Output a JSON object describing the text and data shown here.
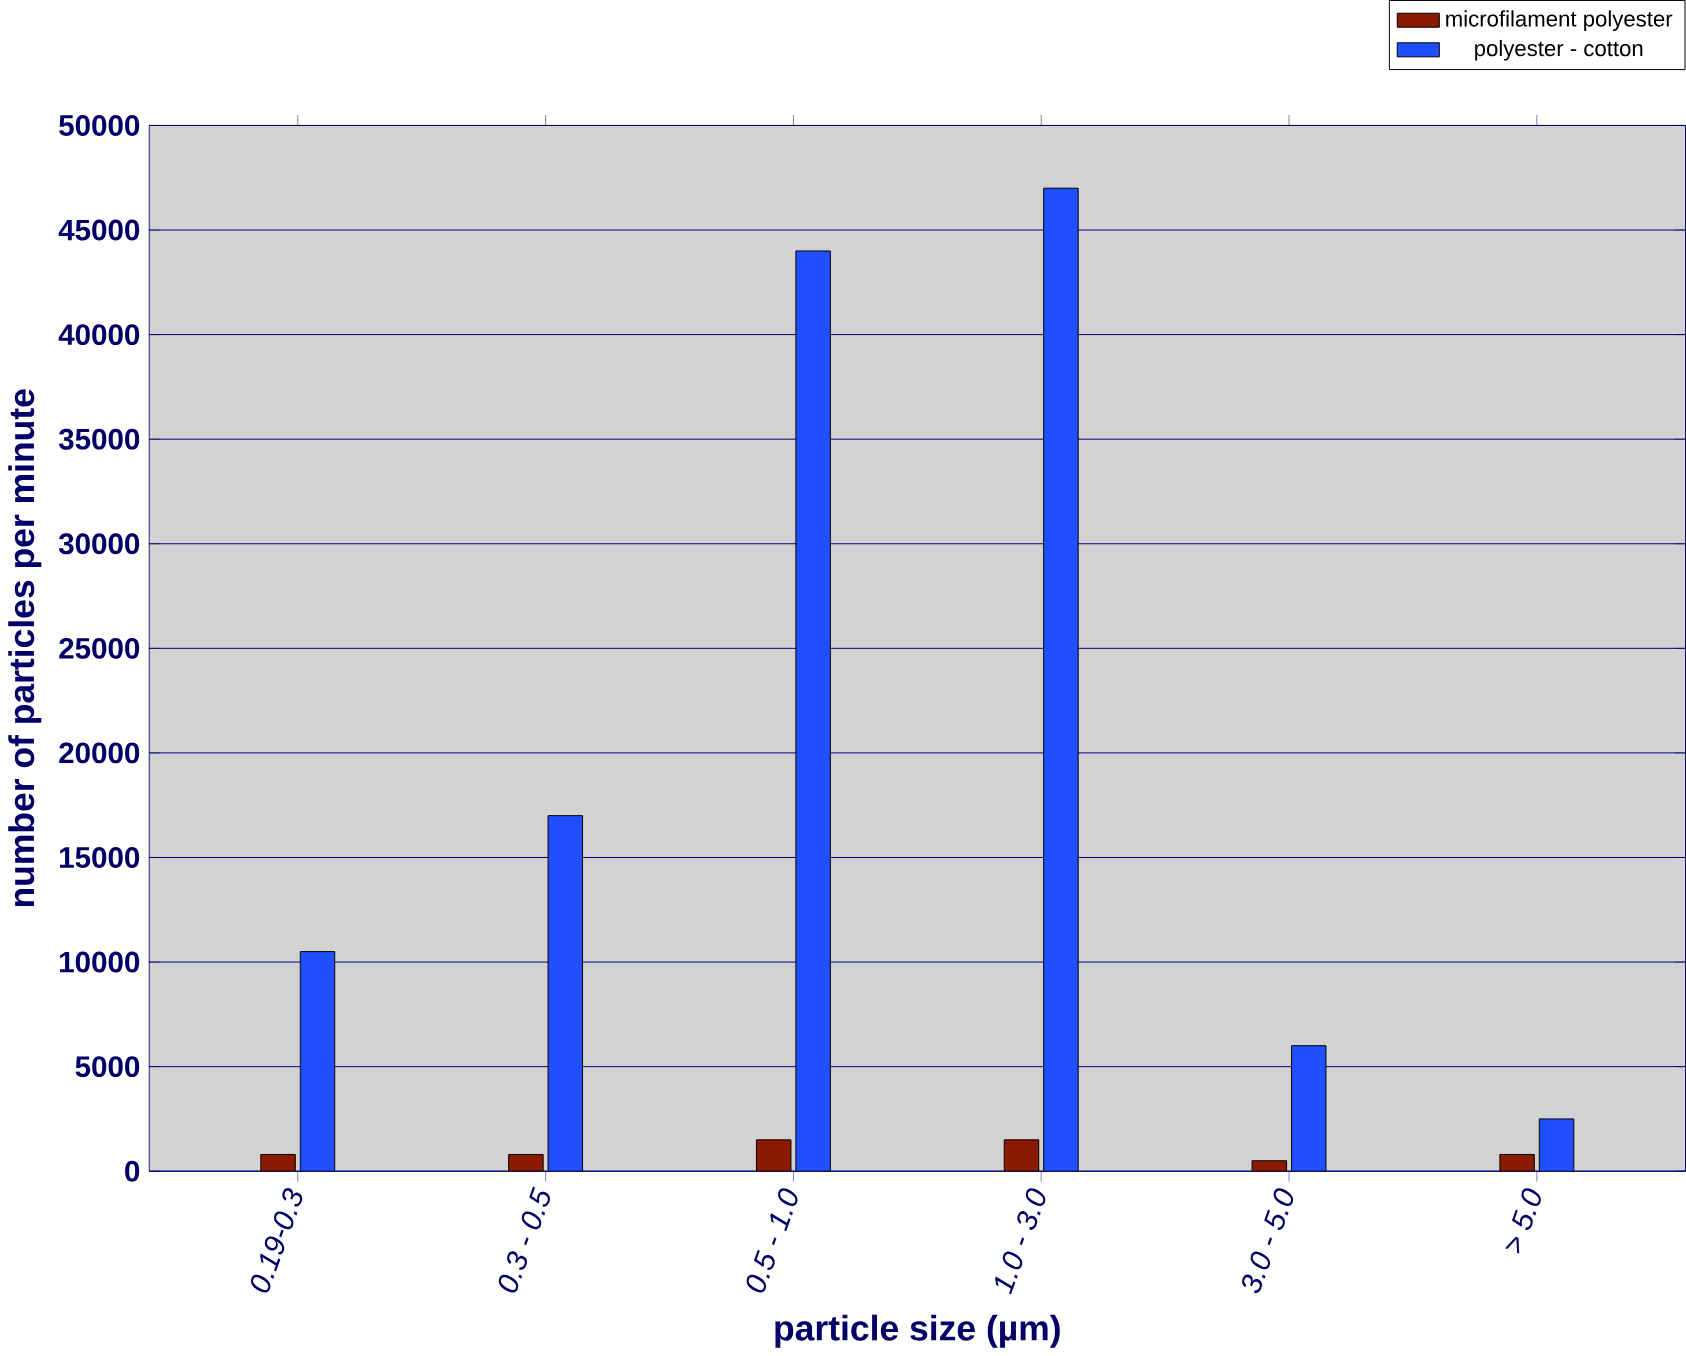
{
  "chart_data": {
    "type": "bar",
    "xlabel": "particle size (µm)",
    "ylabel": "number of particles per minute",
    "categories": [
      "0.19-0.3",
      "0.3 - 0.5",
      "0.5 - 1.0",
      "1.0 - 3.0",
      "3.0 - 5.0",
      "> 5.0"
    ],
    "series": [
      {
        "name": "microfilament polyester",
        "color": "#8b1a00",
        "values": [
          800,
          800,
          1500,
          1500,
          500,
          800
        ]
      },
      {
        "name": "polyester - cotton",
        "color": "#1f4fff",
        "values": [
          10500,
          17000,
          44000,
          47000,
          6000,
          2500
        ]
      }
    ],
    "ylim": [
      0,
      50000
    ],
    "yticks": [
      0,
      5000,
      10000,
      15000,
      20000,
      25000,
      30000,
      35000,
      40000,
      45000,
      50000
    ],
    "grid": "y",
    "legend": "top right"
  }
}
